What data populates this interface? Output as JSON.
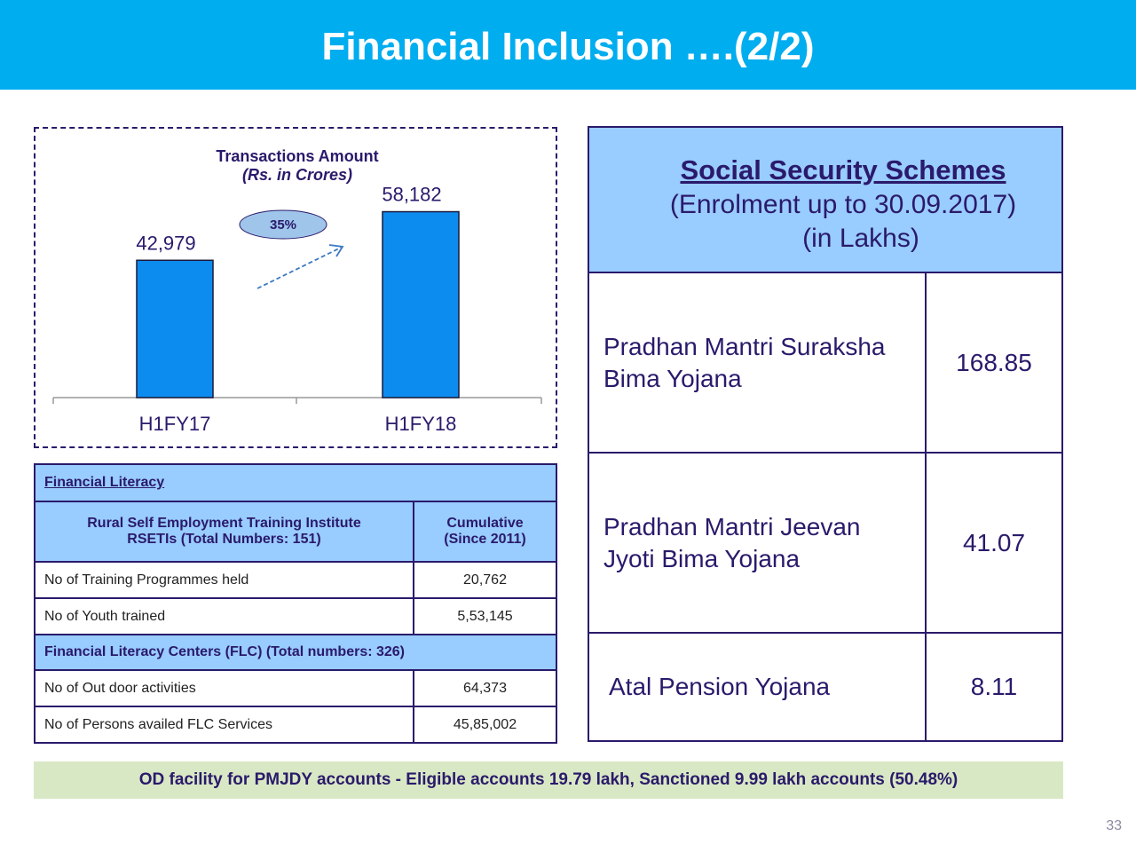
{
  "slide": {
    "title": "Financial Inclusion ….(2/2)",
    "page_number": "33"
  },
  "chart_data": {
    "type": "bar",
    "title": "Transactions Amount",
    "subtitle": "(Rs. in Crores)",
    "categories": [
      "H1FY17",
      "H1FY18"
    ],
    "values": [
      42979,
      58182
    ],
    "value_labels": [
      "42,979",
      "58,182"
    ],
    "growth_label": "35%",
    "bar_color": "#0d8cf0",
    "ylim": [
      0,
      75000
    ],
    "grid": false
  },
  "literacy": {
    "section_title": "Financial Literacy",
    "rseti_header": "Rural Self Employment Training Institute",
    "rseti_header2": "RSETIs (Total Numbers: 151)",
    "cumulative_header": "Cumulative",
    "cumulative_header2": "(Since 2011)",
    "rows": [
      {
        "label": "No of Training Programmes held",
        "value": "20,762"
      },
      {
        "label": "No of Youth trained",
        "value": "5,53,145"
      }
    ],
    "flc_header": "Financial Literacy Centers (FLC) (Total numbers: 326)",
    "flc_rows": [
      {
        "label": "No of Out door activities",
        "value": "64,373"
      },
      {
        "label": "No of Persons availed  FLC Services",
        "value": "45,85,002"
      }
    ]
  },
  "social_security": {
    "title": "Social Security Schemes",
    "subtitle": "(Enrolment up to 30.09.2017)",
    "unit": "(in Lakhs)",
    "schemes": [
      {
        "name_line1": "Pradhan Mantri Suraksha",
        "name_line2": "Bima Yojana",
        "value": "168.85"
      },
      {
        "name_line1": "Pradhan Mantri Jeevan",
        "name_line2": "Jyoti Bima Yojana",
        "value": "41.07"
      },
      {
        "name_line1": "Atal Pension Yojana",
        "name_line2": "",
        "value": "8.11"
      }
    ]
  },
  "footer": {
    "text": "OD facility for PMJDY accounts - Eligible accounts 19.79 lakh,  Sanctioned 9.99 lakh accounts (50.48%)"
  },
  "colors": {
    "header": "#00adef",
    "table_head": "#99ccff",
    "footer_bg": "#d9e8c4",
    "text": "#2a1a6b"
  }
}
